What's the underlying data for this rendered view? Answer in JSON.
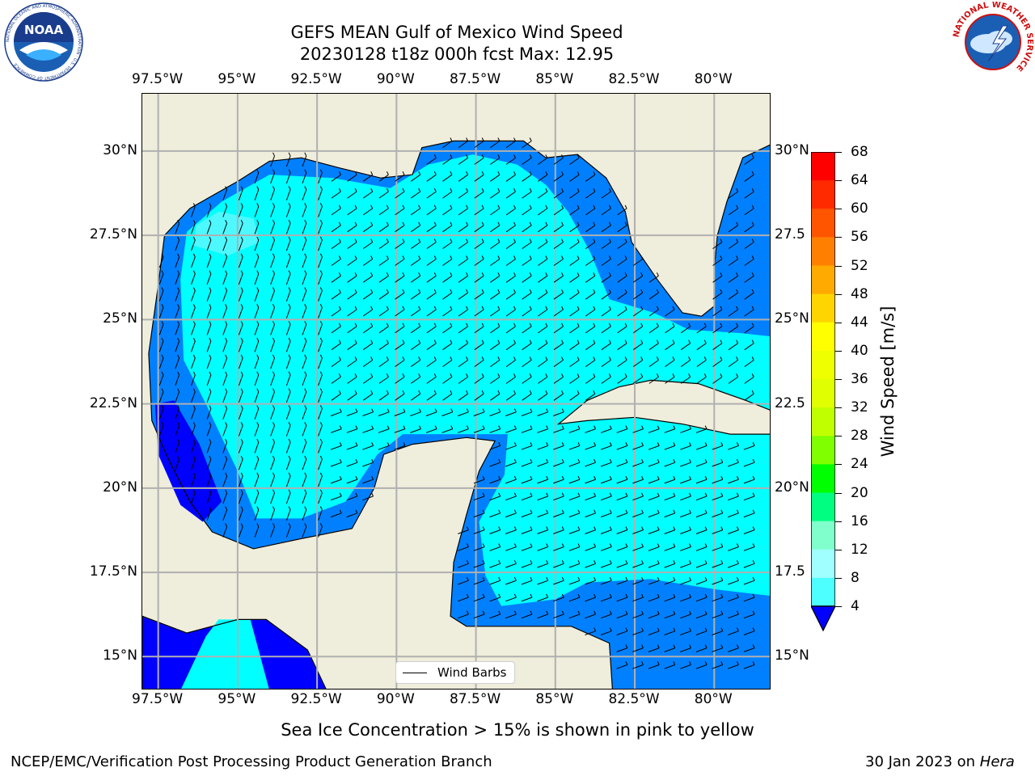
{
  "title": {
    "line1": "GEFS MEAN Gulf of Mexico Wind Speed",
    "line2": "20230128 t18z 000h fcst   Max: 12.95"
  },
  "map": {
    "lon_ticks": [
      "97.5°W",
      "95°W",
      "92.5°W",
      "90°W",
      "87.5°W",
      "85°W",
      "82.5°W",
      "80°W"
    ],
    "lat_ticks": [
      "30°N",
      "27.5°N",
      "25°N",
      "22.5°N",
      "20°N",
      "17.5°N",
      "15°N"
    ],
    "lat_ticks_right": [
      "30°N",
      "27.5",
      "25°N",
      "22.5",
      "20°N",
      "17.5",
      "15°N"
    ],
    "lon_range": [
      -98,
      -78.2
    ],
    "lat_range": [
      14,
      31.7
    ],
    "colors": {
      "land": "#efeddb",
      "water_4_8": "#0080ff",
      "water_8_12": "#00ffff",
      "water_12_16": "#4df9ff",
      "water_lt_4": "#0000ff",
      "coast": "#000000",
      "grid": "#b0b0b0"
    }
  },
  "legend": {
    "label": "Wind Barbs"
  },
  "colorbar": {
    "label": "Wind Speed [m/s]",
    "ticks": [
      "68",
      "64",
      "60",
      "56",
      "52",
      "48",
      "44",
      "40",
      "36",
      "32",
      "28",
      "24",
      "20",
      "16",
      "12",
      "8",
      "4"
    ],
    "colors": [
      "#ff0000",
      "#ff2a00",
      "#ff5500",
      "#ff8000",
      "#ffaa00",
      "#ffd500",
      "#ffff00",
      "#f0ff00",
      "#e0ff00",
      "#c0ff00",
      "#80ff00",
      "#00ff00",
      "#00ff80",
      "#80ffcc",
      "#a0ffff",
      "#4dffff",
      "#00ffff",
      "#0080ff"
    ],
    "extend_color": "#0000ff"
  },
  "subtitle": "Sea Ice Concentration > 15% is shown in pink to yellow",
  "footer": {
    "left": "NCEP/EMC/Verification Post Processing Product Generation Branch",
    "right_prefix": "30 Jan 2023 on ",
    "right_host": "Hera"
  },
  "logos": {
    "noaa": "NOAA",
    "noaa_ring": "NATIONAL OCEANIC AND ATMOSPHERIC ADMINISTRATION · U.S. DEPARTMENT OF COMMERCE",
    "nws_ring": "NATIONAL WEATHER SERVICE"
  }
}
